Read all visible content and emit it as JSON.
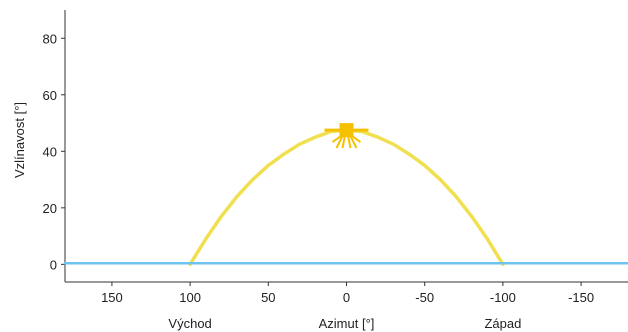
{
  "chart_data": {
    "type": "line",
    "title": "",
    "xlabel": "Azimut [°]",
    "ylabel": "Vzlínavost [°]",
    "x_direction_labels": {
      "left": "Východ",
      "right": "Západ"
    },
    "xlim": [
      180,
      -180
    ],
    "ylim": [
      -2,
      90
    ],
    "x_ticks": [
      150,
      100,
      50,
      0,
      -50,
      -100,
      -150
    ],
    "y_ticks": [
      0,
      20,
      40,
      60,
      80
    ],
    "grid": false,
    "legend": "none",
    "series": [
      {
        "kind": "sun-path",
        "color": "#f0e050",
        "x": [
          100,
          90,
          80,
          70,
          60,
          50,
          40,
          30,
          20,
          10,
          0,
          -10,
          -20,
          -30,
          -40,
          -50,
          -60,
          -70,
          -80,
          -90,
          -100
        ],
        "y": [
          0,
          9,
          17,
          24,
          30,
          35,
          39,
          42.5,
          45,
          47,
          47.5,
          47,
          45,
          42.5,
          39,
          35,
          30,
          24,
          17,
          9,
          0
        ]
      },
      {
        "kind": "horizon",
        "color": "#6ec3f0",
        "x": [
          180,
          -180
        ],
        "y": [
          0.4,
          0.4
        ]
      }
    ],
    "sun_marker": {
      "x": 0,
      "y": 47.5,
      "color": "#f5c000"
    }
  }
}
